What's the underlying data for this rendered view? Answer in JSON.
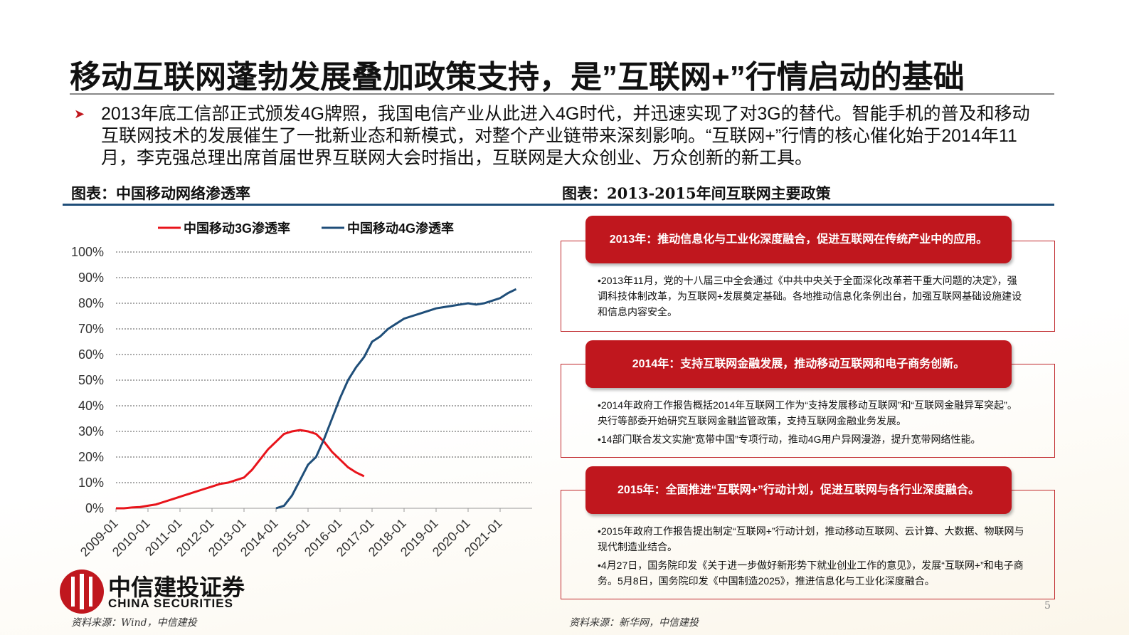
{
  "header": {
    "title": "移动互联网蓬勃发展叠加政策支持，是”互联网+”行情启动的基础"
  },
  "intro": "2013年底工信部正式颁发4G牌照，我国电信产业从此进入4G时代，并迅速实现了对3G的替代。智能手机的普及和移动互联网技术的发展催生了一批新业态和新模式，对整个产业链带来深刻影响。“互联网+”行情的核心催化始于2014年11月，李克强总理出席首届世界互联网大会时指出，互联网是大众创业、万众创新的新工具。",
  "left_caption": "图表：中国移动网络渗透率",
  "right_caption": "图表：2013-2015年间互联网主要政策",
  "chart_data": {
    "type": "line",
    "categories": [
      "2009-01",
      null,
      null,
      null,
      "2010-01",
      null,
      null,
      null,
      "2011-01",
      null,
      null,
      null,
      "2012-01",
      null,
      null,
      null,
      "2013-01",
      null,
      null,
      null,
      "2014-01",
      null,
      null,
      null,
      "2015-01",
      null,
      null,
      null,
      "2016-01",
      null,
      null,
      null,
      "2017-01",
      null,
      null,
      null,
      "2018-01",
      null,
      null,
      null,
      "2019-01",
      null,
      null,
      null,
      "2020-01",
      null,
      null,
      null,
      "2021-01",
      null,
      null
    ],
    "series": [
      {
        "name": "中国移动3G渗透率",
        "color": "#e8141b",
        "values": [
          0,
          0,
          0.3,
          0.5,
          1,
          1.5,
          2.5,
          3.5,
          4.5,
          5.5,
          6.5,
          7.5,
          8.5,
          9.5,
          10,
          11,
          12,
          15,
          19,
          23,
          26,
          29,
          30,
          30.5,
          30,
          29,
          26,
          22,
          19,
          16,
          14,
          12.5,
          null,
          null,
          null,
          null,
          null,
          null,
          null,
          null,
          null,
          null,
          null,
          null,
          null,
          null,
          null,
          null,
          null,
          null,
          null
        ]
      },
      {
        "name": "中国移动4G渗透率",
        "color": "#1f4e79",
        "values": [
          null,
          null,
          null,
          null,
          null,
          null,
          null,
          null,
          null,
          null,
          null,
          null,
          null,
          null,
          null,
          null,
          null,
          null,
          null,
          null,
          0,
          1,
          5,
          11,
          17,
          20,
          27,
          35,
          43,
          50,
          55,
          59,
          65,
          67,
          70,
          72,
          74,
          75,
          76,
          77,
          78,
          78.5,
          79,
          79.5,
          80,
          79.5,
          80,
          81,
          82,
          84,
          85.5
        ]
      }
    ],
    "ylim": [
      0,
      100
    ],
    "yticks": [
      {
        "value": 0,
        "label": "0%"
      },
      {
        "value": 10,
        "label": "10%"
      },
      {
        "value": 20,
        "label": "20%"
      },
      {
        "value": 30,
        "label": "30%"
      },
      {
        "value": 40,
        "label": "40%"
      },
      {
        "value": 50,
        "label": "50%"
      },
      {
        "value": 60,
        "label": "60%"
      },
      {
        "value": 70,
        "label": "70%"
      },
      {
        "value": 80,
        "label": "80%"
      },
      {
        "value": 90,
        "label": "90%"
      },
      {
        "value": 100,
        "label": "100%"
      }
    ],
    "grid": true,
    "legend": "top"
  },
  "policies": [
    {
      "title": "2013年：推动信息化与工业化深度融合，促进互联网在传统产业中的应用。",
      "items": [
        "•2013年11月，党的十八届三中全会通过《中共中央关于全面深化改革若干重大问题的决定》，强调科技体制改革，为互联网+发展奠定基础。各地推动信息化条例出台，加强互联网基础设施建设和信息内容安全。"
      ]
    },
    {
      "title": "2014年：支持互联网金融发展，推动移动互联网和电子商务创新。",
      "items": [
        "•2014年政府工作报告概括2014年互联网工作为“支持发展移动互联网”和“互联网金融异军突起”。央行等部委开始研究互联网金融监管政策，支持互联网金融业务发展。",
        "•14部门联合发文实施“宽带中国”专项行动，推动4G用户异网漫游，提升宽带网络性能。"
      ]
    },
    {
      "title": "2015年：全面推进“互联网+”行动计划，促进互联网与各行业深度融合。",
      "items": [
        "•2015年政府工作报告提出制定“互联网+”行动计划，推动移动互联网、云计算、大数据、物联网与现代制造业结合。",
        "•4月27日，国务院印发《关于进一步做好新形势下就业创业工作的意见》，发展“互联网+”和电子商务。5月8日，国务院印发《中国制造2025》，推进信息化与工业化深度融合。"
      ]
    }
  ],
  "logo": {
    "name": "中信建投证券",
    "name_en": "CHINA SECURITIES"
  },
  "sources": [
    "资料来源：Wind，中信建投",
    "资料来源：新华网，中信建投"
  ],
  "page_number": "5"
}
